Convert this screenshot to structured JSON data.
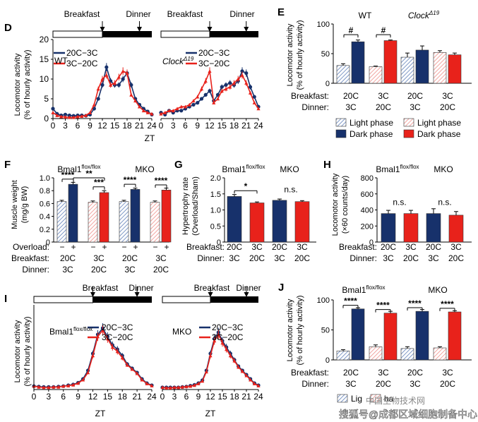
{
  "colors": {
    "navy": "#17316b",
    "red": "#e8221b",
    "hatch_blue": "#8fa6cf",
    "hatch_red": "#f2a6a2"
  },
  "panels": {
    "D": "D",
    "E": "E",
    "F": "F",
    "G": "G",
    "H": "H",
    "I": "I",
    "J": "J"
  },
  "common": {
    "zt": "ZT",
    "breakfast": "Breakfast",
    "dinner": "Dinner",
    "breakfast_colon": "Breakfast:",
    "dinner_colon": "Dinner:",
    "overload_colon": "Overload:",
    "minus": "−",
    "plus": "+",
    "ns": "n.s.",
    "hash": "#",
    "star1": "*",
    "star2": "**",
    "star3": "***",
    "star4": "****"
  },
  "D": {
    "ylabel1": "Locomotor activity",
    "ylabel2": "(% of hourly activity)",
    "left_group": "WT",
    "right_group": "Clock",
    "right_sup": "Δ19",
    "legend_a": "20C−3C",
    "legend_b": "3C−20C",
    "yticks": [
      "0",
      "5",
      "10",
      "15",
      "20"
    ],
    "xticks": [
      "0",
      "3",
      "6",
      "9",
      "12",
      "15",
      "18",
      "21",
      "24"
    ]
  },
  "E": {
    "ylabel1": "Locomotor activity",
    "ylabel2": "(% of hourly activity)",
    "group_wt": "WT",
    "group_clock": "Clock",
    "group_sup": "Δ19",
    "yticks": [
      "0",
      "50",
      "100"
    ],
    "legend": [
      "Light phase",
      "Dark phase",
      "Light phase",
      "Dark phase"
    ]
  },
  "F": {
    "ylabel1": "Muscle weight",
    "ylabel2": "(mg/g BW)",
    "group_a": "Bmal1",
    "group_a_sup": "flox/flox",
    "group_b": "MKO",
    "yticks": [
      "0",
      "0.2",
      "0.4",
      "0.6",
      "0.8",
      "1.0"
    ]
  },
  "G": {
    "ylabel1": "Hypertrophy rate",
    "ylabel2": "(Overload/Sham)",
    "group_a": "Bmal1",
    "group_a_sup": "flox/flox",
    "group_b": "MKO",
    "yticks": [
      "0",
      "0.5",
      "1.0",
      "1.5",
      "2.0"
    ]
  },
  "H": {
    "ylabel1": "Locomotor activity",
    "ylabel2": "(×60 counts/day)",
    "group_a": "Bmal1",
    "group_a_sup": "flox/flox",
    "group_b": "MKO",
    "yticks": [
      "0",
      "200",
      "400",
      "600",
      "800"
    ]
  },
  "I": {
    "ylabel1": "Locomotor activity",
    "ylabel2": "(% of hourly activity)",
    "left_group": "Bmal1",
    "left_sup": "flox/flox",
    "right_group": "MKO",
    "legend_a": "20C−3C",
    "legend_b": "3C−20C",
    "xticks": [
      "0",
      "3",
      "6",
      "9",
      "12",
      "15",
      "18",
      "21",
      "24"
    ]
  },
  "J": {
    "ylabel1": "Locomotor activity",
    "ylabel2": "(% of hourly activity)",
    "group_a": "Bmal1",
    "group_a_sup": "flox/flox",
    "group_b": "MKO",
    "yticks": [
      "0",
      "50",
      "100"
    ],
    "legend_partial_1": "Lig",
    "legend_partial_2": "ha"
  },
  "watermark_1": "搜狐号@成都区域细胞制备中心",
  "watermark_2": "中国生物技术网",
  "chart_data": [
    {
      "panel": "D-left",
      "type": "line",
      "title": "WT",
      "xlabel": "ZT",
      "ylabel": "Locomotor activity (% of hourly activity)",
      "xlim": [
        0,
        24
      ],
      "ylim": [
        0,
        20
      ],
      "x": [
        0,
        1,
        2,
        3,
        4,
        5,
        6,
        7,
        8,
        9,
        10,
        11,
        12,
        13,
        14,
        15,
        16,
        17,
        18,
        19,
        20,
        21,
        22,
        23,
        24
      ],
      "series": [
        {
          "name": "20C−3C",
          "values": [
            2.5,
            1.2,
            0.8,
            1.0,
            0.8,
            0.7,
            0.8,
            0.8,
            0.7,
            1.0,
            2.5,
            5.0,
            8.5,
            13.0,
            9.5,
            8.5,
            8.5,
            10.0,
            11.5,
            8.5,
            5.0,
            3.5,
            2.5,
            1.8,
            1.0
          ]
        },
        {
          "name": "3C−20C",
          "values": [
            1.5,
            0.8,
            0.5,
            0.4,
            0.3,
            0.3,
            0.5,
            0.6,
            0.8,
            1.5,
            3.5,
            7.5,
            10.0,
            11.0,
            8.5,
            9.0,
            10.5,
            12.0,
            11.5,
            6.0,
            4.5,
            3.0,
            2.0,
            1.5,
            1.2
          ]
        }
      ]
    },
    {
      "panel": "D-right",
      "type": "line",
      "title": "ClockΔ19",
      "xlabel": "ZT",
      "xlim": [
        0,
        24
      ],
      "ylim": [
        0,
        20
      ],
      "x": [
        0,
        1,
        2,
        3,
        4,
        5,
        6,
        7,
        8,
        9,
        10,
        11,
        12,
        13,
        14,
        15,
        16,
        17,
        18,
        19,
        20,
        21,
        22,
        23,
        24
      ],
      "series": [
        {
          "name": "20C−3C",
          "values": [
            1.5,
            1.0,
            2.0,
            1.5,
            2.0,
            2.0,
            2.5,
            3.0,
            3.5,
            4.0,
            5.0,
            6.0,
            7.0,
            4.5,
            6.0,
            8.0,
            8.5,
            9.0,
            8.5,
            9.5,
            12.0,
            11.5,
            8.0,
            5.5,
            3.0
          ]
        },
        {
          "name": "3C−20C",
          "values": [
            1.2,
            1.5,
            2.0,
            2.0,
            2.5,
            3.0,
            3.0,
            3.5,
            4.5,
            5.5,
            7.5,
            9.5,
            12.0,
            4.0,
            5.0,
            7.0,
            7.5,
            8.0,
            9.0,
            10.0,
            11.0,
            9.0,
            6.5,
            4.0,
            2.5
          ]
        }
      ]
    },
    {
      "panel": "E",
      "type": "bar",
      "ylabel": "Locomotor activity (% of hourly activity)",
      "ylim": [
        0,
        100
      ],
      "groups": [
        "WT 20C/3C",
        "WT 3C/20C",
        "ClockΔ19 20C/3C",
        "ClockΔ19 3C/20C"
      ],
      "series": [
        {
          "name": "Light phase",
          "values": [
            30,
            28,
            44,
            52
          ],
          "errors": [
            3,
            1,
            7,
            3
          ]
        },
        {
          "name": "Dark phase",
          "values": [
            70,
            72,
            56,
            48
          ],
          "errors": [
            3,
            1,
            7,
            3
          ]
        }
      ]
    },
    {
      "panel": "F",
      "type": "bar",
      "ylabel": "Muscle weight (mg/g BW)",
      "ylim": [
        0,
        1.0
      ],
      "groups": [
        "Bmal1 20C/3C",
        "Bmal1 3C/20C",
        "MKO 20C/3C",
        "MKO 3C/20C"
      ],
      "series": [
        {
          "name": "Overload −",
          "values": [
            0.63,
            0.62,
            0.63,
            0.62
          ],
          "errors": [
            0.02,
            0.02,
            0.02,
            0.02
          ]
        },
        {
          "name": "Overload +",
          "values": [
            0.9,
            0.77,
            0.82,
            0.81
          ],
          "errors": [
            0.03,
            0.03,
            0.02,
            0.03
          ]
        }
      ]
    },
    {
      "panel": "G",
      "type": "bar",
      "ylabel": "Hypertrophy rate (Overload/Sham)",
      "ylim": [
        0,
        2.0
      ],
      "categories": [
        "Bmal1 20C/3C",
        "Bmal1 3C/20C",
        "MKO 20C/3C",
        "MKO 3C/20C"
      ],
      "values": [
        1.42,
        1.22,
        1.3,
        1.26
      ],
      "errors": [
        0.06,
        0.03,
        0.04,
        0.03
      ]
    },
    {
      "panel": "H",
      "type": "bar",
      "ylabel": "Locomotor activity (×60 counts/day)",
      "ylim": [
        0,
        800
      ],
      "categories": [
        "Bmal1 20C/3C",
        "Bmal1 3C/20C",
        "MKO 20C/3C",
        "MKO 3C/20C"
      ],
      "values": [
        355,
        355,
        355,
        335
      ],
      "errors": [
        40,
        40,
        60,
        45
      ]
    },
    {
      "panel": "I-left",
      "type": "line",
      "title": "Bmal1flox/flox",
      "xlabel": "ZT",
      "xlim": [
        0,
        24
      ],
      "ylim": [
        0,
        20
      ],
      "x": [
        0,
        1,
        2,
        3,
        4,
        5,
        6,
        7,
        8,
        9,
        10,
        11,
        12,
        13,
        14,
        15,
        16,
        17,
        18,
        19,
        20,
        21,
        22,
        23,
        24
      ],
      "series": [
        {
          "name": "20C−3C",
          "values": [
            0.8,
            0.7,
            0.6,
            0.6,
            0.6,
            0.7,
            0.8,
            1.0,
            1.2,
            1.6,
            2.5,
            4.5,
            8.5,
            13.0,
            14.5,
            12.5,
            10.5,
            9.5,
            8.0,
            6.0,
            5.0,
            4.0,
            2.5,
            1.5,
            1.0
          ]
        },
        {
          "name": "3C−20C",
          "values": [
            0.8,
            0.6,
            0.5,
            0.5,
            0.6,
            0.6,
            0.8,
            0.9,
            1.1,
            1.5,
            2.3,
            4.0,
            8.0,
            12.5,
            14.0,
            12.0,
            10.0,
            9.0,
            7.5,
            5.8,
            4.8,
            3.8,
            2.3,
            1.4,
            0.9
          ]
        }
      ]
    },
    {
      "panel": "I-right",
      "type": "line",
      "title": "MKO",
      "xlabel": "ZT",
      "xlim": [
        0,
        24
      ],
      "ylim": [
        0,
        20
      ],
      "x": [
        0,
        1,
        2,
        3,
        4,
        5,
        6,
        7,
        8,
        9,
        10,
        11,
        12,
        13,
        14,
        15,
        16,
        17,
        18,
        19,
        20,
        21,
        22,
        23,
        24
      ],
      "series": [
        {
          "name": "20C−3C",
          "values": [
            0.5,
            0.5,
            0.5,
            0.5,
            0.5,
            0.6,
            0.7,
            0.9,
            1.1,
            1.5,
            2.2,
            4.5,
            8.5,
            12.0,
            13.5,
            11.5,
            10.0,
            8.5,
            7.0,
            5.5,
            4.5,
            3.5,
            2.5,
            1.5,
            1.0
          ]
        },
        {
          "name": "3C−20C",
          "values": [
            0.5,
            0.4,
            0.4,
            0.5,
            0.5,
            0.6,
            0.7,
            0.8,
            1.0,
            1.4,
            2.0,
            4.2,
            8.0,
            11.5,
            13.0,
            11.0,
            9.5,
            8.0,
            6.8,
            5.3,
            4.3,
            3.3,
            2.3,
            1.4,
            0.9
          ]
        }
      ]
    },
    {
      "panel": "J",
      "type": "bar",
      "ylabel": "Locomotor activity (% of hourly activity)",
      "ylim": [
        0,
        100
      ],
      "groups": [
        "Bmal1 20C/3C",
        "Bmal1 3C/20C",
        "MKO 20C/3C",
        "MKO 3C/20C"
      ],
      "series": [
        {
          "name": "Light phase",
          "values": [
            15,
            22,
            19,
            20
          ],
          "errors": [
            2,
            3,
            3,
            2
          ]
        },
        {
          "name": "Dark phase",
          "values": [
            85,
            78,
            81,
            80
          ],
          "errors": [
            2,
            3,
            3,
            2
          ]
        }
      ]
    }
  ]
}
